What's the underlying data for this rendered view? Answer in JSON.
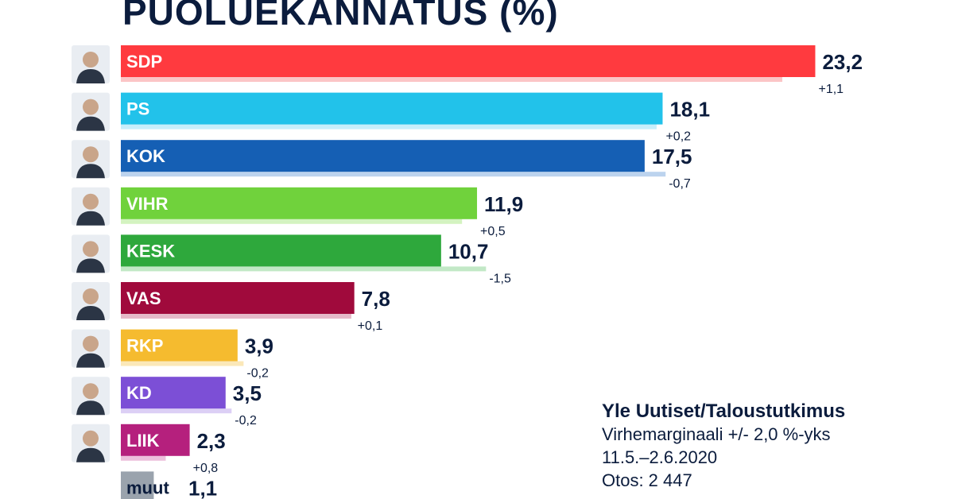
{
  "title": "PUOLUEKANNATUS (%)",
  "source": {
    "title": "Yle Uutiset/Taloustutkimus",
    "margin": "Virhemarginaali +/- 2,0 %-yks",
    "period": "11.5.–2.6.2020",
    "sample": "Otos: 2 447"
  },
  "chart_data": {
    "type": "bar",
    "orientation": "horizontal",
    "title": "PUOLUEKANNATUS (%)",
    "categories": [
      "SDP",
      "PS",
      "KOK",
      "VIHR",
      "KESK",
      "VAS",
      "RKP",
      "KD",
      "LIIK",
      "muut"
    ],
    "values": [
      23.2,
      18.1,
      17.5,
      11.9,
      10.7,
      7.8,
      3.9,
      3.5,
      2.3,
      1.1
    ],
    "value_labels": [
      "23,2",
      "18,1",
      "17,5",
      "11,9",
      "10,7",
      "7,8",
      "3,9",
      "3,5",
      "2,3",
      "1,1"
    ],
    "previous": [
      22.1,
      17.9,
      18.2,
      11.4,
      12.2,
      7.7,
      4.1,
      3.7,
      1.5,
      null
    ],
    "change_labels": [
      "+1,1",
      "+0,2",
      "-0,7",
      "+0,5",
      "-1,5",
      "+0,1",
      "-0,2",
      "-0,2",
      "+0,8",
      ""
    ],
    "colors": [
      "#ff3a3f",
      "#22c2ea",
      "#155fb4",
      "#70d23c",
      "#2ea83c",
      "#a00a3c",
      "#f5bb2f",
      "#7c4fd6",
      "#b5207d",
      "#9aa3ad"
    ],
    "prev_colors": [
      "#fbc5c6",
      "#c7eefb",
      "#bcd3ee",
      "#d3f3c0",
      "#c2e8c6",
      "#e5b9c8",
      "#fbe8b8",
      "#dccff5",
      "#ecc0dc",
      "#dfe2e5"
    ],
    "avatars": [
      "portrait",
      "portrait",
      "portrait",
      "portrait",
      "portrait",
      "portrait",
      "portrait",
      "portrait",
      "portrait",
      ""
    ]
  }
}
